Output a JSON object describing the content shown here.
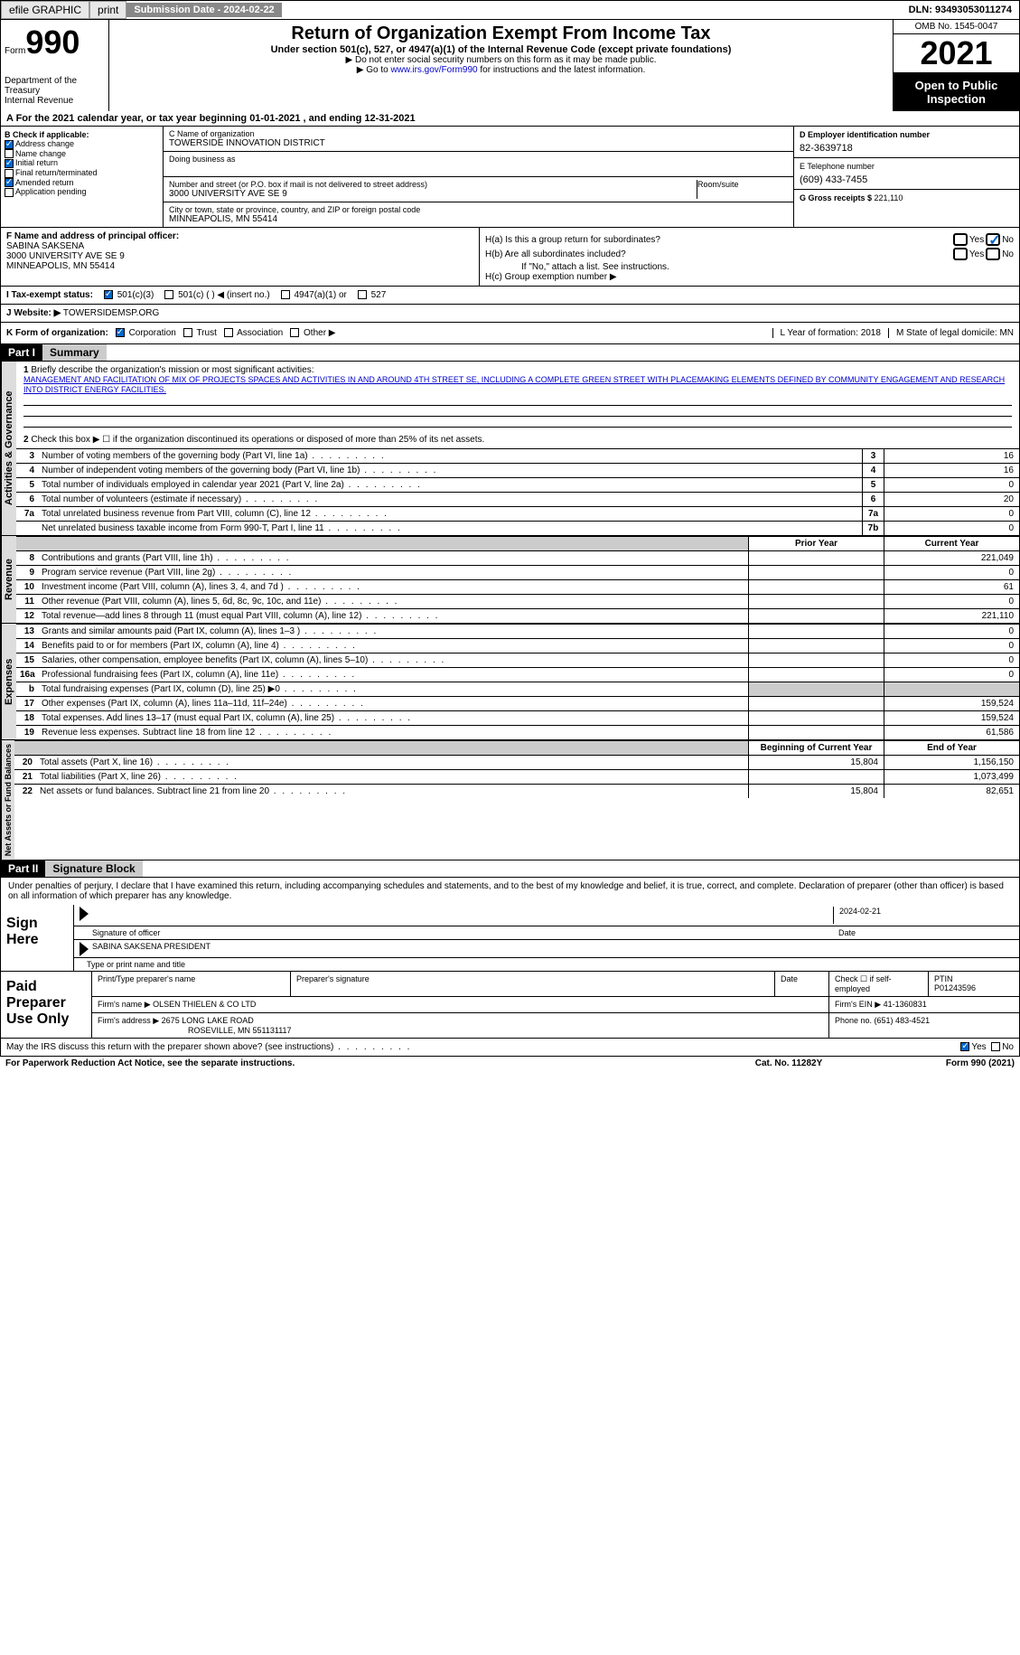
{
  "topbar": {
    "efile": "efile GRAPHIC",
    "print": "print",
    "sub_label": "Submission Date - ",
    "sub_date": "2024-02-22",
    "dln_label": "DLN: ",
    "dln": "93493053011274"
  },
  "header": {
    "form_label": "Form",
    "form_no": "990",
    "title": "Return of Organization Exempt From Income Tax",
    "sub": "Under section 501(c), 527, or 4947(a)(1) of the Internal Revenue Code (except private foundations)",
    "note1": "▶ Do not enter social security numbers on this form as it may be made public.",
    "note2_pre": "▶ Go to ",
    "note2_link": "www.irs.gov/Form990",
    "note2_post": " for instructions and the latest information.",
    "dept": "Department of the Treasury",
    "irs": "Internal Revenue Service",
    "omb": "OMB No. 1545-0047",
    "year": "2021",
    "otp": "Open to Public Inspection"
  },
  "a_line": "A For the 2021 calendar year, or tax year beginning 01-01-2021   , and ending 12-31-2021",
  "b": {
    "label": "B Check if applicable:",
    "addr": "Address change",
    "name": "Name change",
    "init": "Initial return",
    "final": "Final return/terminated",
    "amend": "Amended return",
    "app": "Application pending"
  },
  "c": {
    "name_label": "C Name of organization",
    "name": "TOWERSIDE INNOVATION DISTRICT",
    "dba_label": "Doing business as",
    "street_label": "Number and street (or P.O. box if mail is not delivered to street address)",
    "street": "3000 UNIVERSITY AVE SE 9",
    "room_label": "Room/suite",
    "city_label": "City or town, state or province, country, and ZIP or foreign postal code",
    "city": "MINNEAPOLIS, MN  55414"
  },
  "d": {
    "ein_label": "D Employer identification number",
    "ein": "82-3639718",
    "tel_label": "E Telephone number",
    "tel": "(609) 433-7455",
    "gross_label": "G Gross receipts $ ",
    "gross": "221,110"
  },
  "f": {
    "label": "F Name and address of principal officer:",
    "name": "SABINA SAKSENA",
    "addr1": "3000 UNIVERSITY AVE SE 9",
    "addr2": "MINNEAPOLIS, MN  55414"
  },
  "h": {
    "a_label": "H(a)  Is this a group return for subordinates?",
    "b_label": "H(b)  Are all subordinates included?",
    "b_note": "If \"No,\" attach a list. See instructions.",
    "c_label": "H(c)  Group exemption number ▶",
    "yes": "Yes",
    "no": "No"
  },
  "i": {
    "label": "I   Tax-exempt status:",
    "c3": "501(c)(3)",
    "c_other": "501(c) (  ) ◀ (insert no.)",
    "a1": "4947(a)(1) or",
    "s527": "527"
  },
  "j": {
    "label": "J  Website: ▶",
    "val": "TOWERSIDEMSP.ORG"
  },
  "k": {
    "label": "K Form of organization:",
    "corp": "Corporation",
    "trust": "Trust",
    "assoc": "Association",
    "other": "Other ▶"
  },
  "l": {
    "label": "L Year of formation: ",
    "val": "2018"
  },
  "m": {
    "label": "M State of legal domicile: ",
    "val": "MN"
  },
  "part1": {
    "hdr": "Part I",
    "title": "Summary"
  },
  "summary": {
    "activities_label": "Activities & Governance",
    "revenue_label": "Revenue",
    "expenses_label": "Expenses",
    "netassets_label": "Net Assets or Fund Balances",
    "line1_label": "Briefly describe the organization's mission or most significant activities:",
    "line1_text": "MANAGEMENT AND FACILITATION OF MIX OF PROJECTS SPACES AND ACTIVITIES IN AND AROUND 4TH STREET SE, INCLUDING A COMPLETE GREEN STREET WITH PLACEMAKING ELEMENTS DEFINED BY COMMUNITY ENGAGEMENT AND RESEARCH INTO DISTRICT ENERGY FACILITIES.",
    "line2": "Check this box ▶ ☐ if the organization discontinued its operations or disposed of more than 25% of its net assets.",
    "lines": [
      {
        "n": "3",
        "d": "Number of voting members of the governing body (Part VI, line 1a)",
        "b": "3",
        "v": "16"
      },
      {
        "n": "4",
        "d": "Number of independent voting members of the governing body (Part VI, line 1b)",
        "b": "4",
        "v": "16"
      },
      {
        "n": "5",
        "d": "Total number of individuals employed in calendar year 2021 (Part V, line 2a)",
        "b": "5",
        "v": "0"
      },
      {
        "n": "6",
        "d": "Total number of volunteers (estimate if necessary)",
        "b": "6",
        "v": "20"
      },
      {
        "n": "7a",
        "d": "Total unrelated business revenue from Part VIII, column (C), line 12",
        "b": "7a",
        "v": "0"
      },
      {
        "n": "",
        "d": "Net unrelated business taxable income from Form 990-T, Part I, line 11",
        "b": "7b",
        "v": "0"
      }
    ],
    "prior_label": "Prior Year",
    "current_label": "Current Year",
    "rev_lines": [
      {
        "n": "8",
        "d": "Contributions and grants (Part VIII, line 1h)",
        "p": "",
        "c": "221,049"
      },
      {
        "n": "9",
        "d": "Program service revenue (Part VIII, line 2g)",
        "p": "",
        "c": "0"
      },
      {
        "n": "10",
        "d": "Investment income (Part VIII, column (A), lines 3, 4, and 7d )",
        "p": "",
        "c": "61"
      },
      {
        "n": "11",
        "d": "Other revenue (Part VIII, column (A), lines 5, 6d, 8c, 9c, 10c, and 11e)",
        "p": "",
        "c": "0"
      },
      {
        "n": "12",
        "d": "Total revenue—add lines 8 through 11 (must equal Part VIII, column (A), line 12)",
        "p": "",
        "c": "221,110"
      }
    ],
    "exp_lines": [
      {
        "n": "13",
        "d": "Grants and similar amounts paid (Part IX, column (A), lines 1–3 )",
        "p": "",
        "c": "0"
      },
      {
        "n": "14",
        "d": "Benefits paid to or for members (Part IX, column (A), line 4)",
        "p": "",
        "c": "0"
      },
      {
        "n": "15",
        "d": "Salaries, other compensation, employee benefits (Part IX, column (A), lines 5–10)",
        "p": "",
        "c": "0"
      },
      {
        "n": "16a",
        "d": "Professional fundraising fees (Part IX, column (A), line 11e)",
        "p": "",
        "c": "0"
      },
      {
        "n": "b",
        "d": "Total fundraising expenses (Part IX, column (D), line 25) ▶0",
        "p": "shaded",
        "c": "shaded"
      },
      {
        "n": "17",
        "d": "Other expenses (Part IX, column (A), lines 11a–11d, 11f–24e)",
        "p": "",
        "c": "159,524"
      },
      {
        "n": "18",
        "d": "Total expenses. Add lines 13–17 (must equal Part IX, column (A), line 25)",
        "p": "",
        "c": "159,524"
      },
      {
        "n": "19",
        "d": "Revenue less expenses. Subtract line 18 from line 12",
        "p": "",
        "c": "61,586"
      }
    ],
    "begin_label": "Beginning of Current Year",
    "end_label": "End of Year",
    "net_lines": [
      {
        "n": "20",
        "d": "Total assets (Part X, line 16)",
        "p": "15,804",
        "c": "1,156,150"
      },
      {
        "n": "21",
        "d": "Total liabilities (Part X, line 26)",
        "p": "",
        "c": "1,073,499"
      },
      {
        "n": "22",
        "d": "Net assets or fund balances. Subtract line 21 from line 20",
        "p": "15,804",
        "c": "82,651"
      }
    ]
  },
  "part2": {
    "hdr": "Part II",
    "title": "Signature Block",
    "text": "Under penalties of perjury, I declare that I have examined this return, including accompanying schedules and statements, and to the best of my knowledge and belief, it is true, correct, and complete. Declaration of preparer (other than officer) is based on all information of which preparer has any knowledge."
  },
  "sign": {
    "label": "Sign Here",
    "sig_label": "Signature of officer",
    "date": "2024-02-21",
    "date_label": "Date",
    "name": "SABINA SAKSENA  PRESIDENT",
    "name_label": "Type or print name and title"
  },
  "prep": {
    "label": "Paid Preparer Use Only",
    "name_label": "Print/Type preparer's name",
    "sig_label": "Preparer's signature",
    "date_label": "Date",
    "self_label": "Check ☐ if self-employed",
    "ptin_label": "PTIN",
    "ptin": "P01243596",
    "firm_label": "Firm's name    ▶",
    "firm": "OLSEN THIELEN & CO LTD",
    "ein_label": "Firm's EIN ▶",
    "ein": "41-1360831",
    "addr_label": "Firm's address ▶",
    "addr1": "2675 LONG LAKE ROAD",
    "addr2": "ROSEVILLE, MN  551131117",
    "phone_label": "Phone no. ",
    "phone": "(651) 483-4521"
  },
  "footer": {
    "discuss": "May the IRS discuss this return with the preparer shown above? (see instructions)",
    "yes": "Yes",
    "no": "No",
    "paperwork": "For Paperwork Reduction Act Notice, see the separate instructions.",
    "cat": "Cat. No. 11282Y",
    "form": "Form 990 (2021)"
  }
}
